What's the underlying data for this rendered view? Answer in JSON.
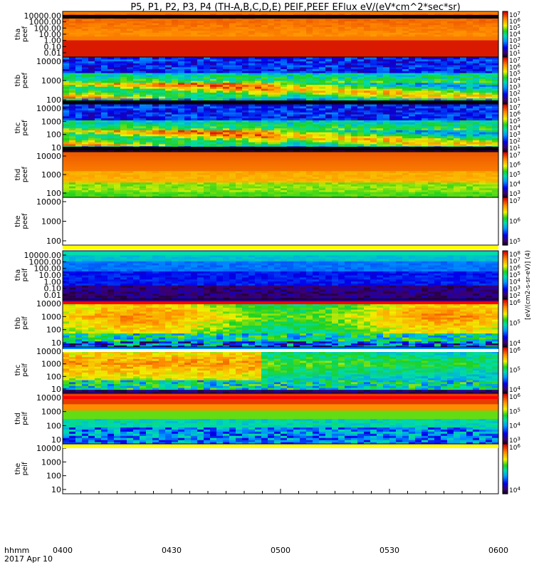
{
  "chart_data": {
    "type": "heatmap",
    "title": "P5, P1, P2, P3, P4 (TH-A,B,C,D,E) PEIF,PEEF EFlux eV/(eV*cm^2*sec*sr)",
    "xlabel": "hhmm",
    "date_label": "2017 Apr 10",
    "x_tick_labels": [
      "0400",
      "0430",
      "0500",
      "0530",
      "0600"
    ],
    "x_range_minutes": [
      0,
      120
    ],
    "colorscale": "rainbow",
    "units_label": "[eV/(cm2-s-sr-eV)] (4)",
    "panels": [
      {
        "ylabel": "tha\npeef",
        "kind": "peef_a",
        "ytick_labels": [
          "10000.00",
          "1000.00",
          "100.00",
          "10.00",
          "1.00",
          "0.10",
          "0.01"
        ],
        "cbar_labels": [
          "10^7",
          "10^6",
          "10^5",
          "10^4",
          "10^3",
          "10^2",
          "10^1"
        ]
      },
      {
        "ylabel": "thb\npeef",
        "kind": "peef",
        "ytick_labels": [
          "10000",
          "1000",
          "100"
        ],
        "cbar_labels": [
          "10^7",
          "10^6",
          "10^5",
          "10^4",
          "10^3",
          "10^2",
          "10^1"
        ]
      },
      {
        "ylabel": "thc\npeef",
        "kind": "peef",
        "ytick_labels": [
          "10000",
          "1000",
          "100",
          "10"
        ],
        "cbar_labels": [
          "10^7",
          "10^6",
          "10^5",
          "10^4",
          "10^3",
          "10^2",
          "10^1"
        ]
      },
      {
        "ylabel": "thd\npeef",
        "kind": "peef_d",
        "ytick_labels": [
          "10000",
          "1000",
          "100"
        ],
        "cbar_labels": [
          "10^7",
          "10^6",
          "10^5",
          "10^4",
          "10^3"
        ]
      },
      {
        "ylabel": "the\npeef",
        "kind": "empty",
        "ytick_labels": [
          "10000",
          "1000",
          "100"
        ],
        "cbar_labels": [
          "10^7",
          "10^6",
          "10^5"
        ]
      },
      {
        "ylabel": "tha\npeif",
        "kind": "peif_a",
        "ytick_labels": [
          "10000.00",
          "1000.00",
          "100.00",
          "10.00",
          "1.00",
          "0.10",
          "0.01"
        ],
        "cbar_labels": [
          "10^8",
          "10^7",
          "10^6",
          "10^5",
          "10^4",
          "10^3",
          "10^2"
        ]
      },
      {
        "ylabel": "thb\npeif",
        "kind": "peif",
        "ytick_labels": [
          "10000",
          "1000",
          "100",
          "10"
        ],
        "cbar_labels": [
          "10^6",
          "10^5",
          "10^4"
        ]
      },
      {
        "ylabel": "thc\npeif",
        "kind": "peif_c",
        "ytick_labels": [
          "10000",
          "1000",
          "100",
          "10"
        ],
        "cbar_labels": [
          "10^6",
          "10^5",
          "10^4"
        ]
      },
      {
        "ylabel": "thd\npeif",
        "kind": "peif_d",
        "ytick_labels": [
          "10000",
          "1000",
          "100",
          "10"
        ],
        "cbar_labels": [
          "10^6",
          "10^5",
          "10^4",
          "10^3"
        ]
      },
      {
        "ylabel": "the\npeif",
        "kind": "empty",
        "ytick_labels": [
          "10000",
          "1000",
          "100",
          "10"
        ],
        "cbar_labels": [
          "10^6",
          "10^4"
        ]
      }
    ]
  }
}
